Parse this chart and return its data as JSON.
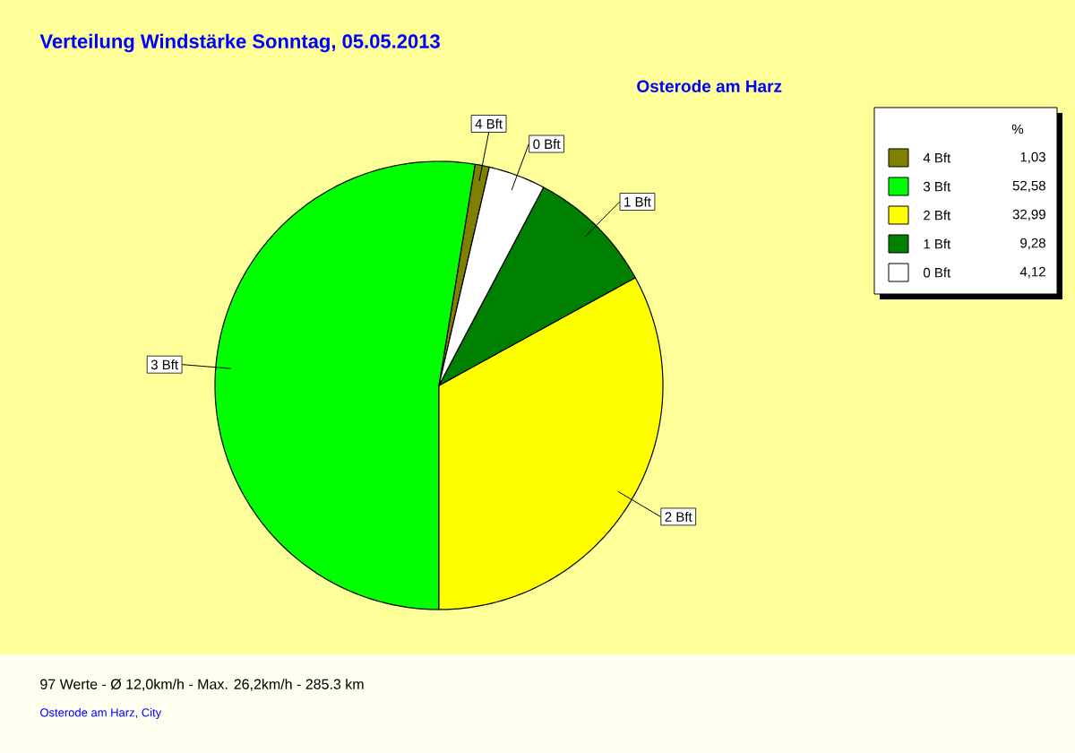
{
  "chart_data": {
    "type": "pie",
    "title": "Verteilung Windstärke  Sonntag, 05.05.2013",
    "subtitle": "Osterode am Harz",
    "legend_title": "%",
    "categories": [
      "4 Bft",
      "3 Bft",
      "2 Bft",
      "1 Bft",
      "0 Bft"
    ],
    "values": [
      1.03,
      52.58,
      32.99,
      9.28,
      4.12
    ],
    "value_labels": [
      "1,03",
      "52,58",
      "32,99",
      "9,28",
      "4,12"
    ],
    "colors": [
      "#808000",
      "#00ff00",
      "#ffff00",
      "#008000",
      "#ffffff"
    ],
    "legend": "top right",
    "annotations": [
      "97 Werte   -   Ø 12,0km/h  -  Max. 26,2km/h   -   285.3 km",
      "Osterode am Harz, City"
    ]
  }
}
